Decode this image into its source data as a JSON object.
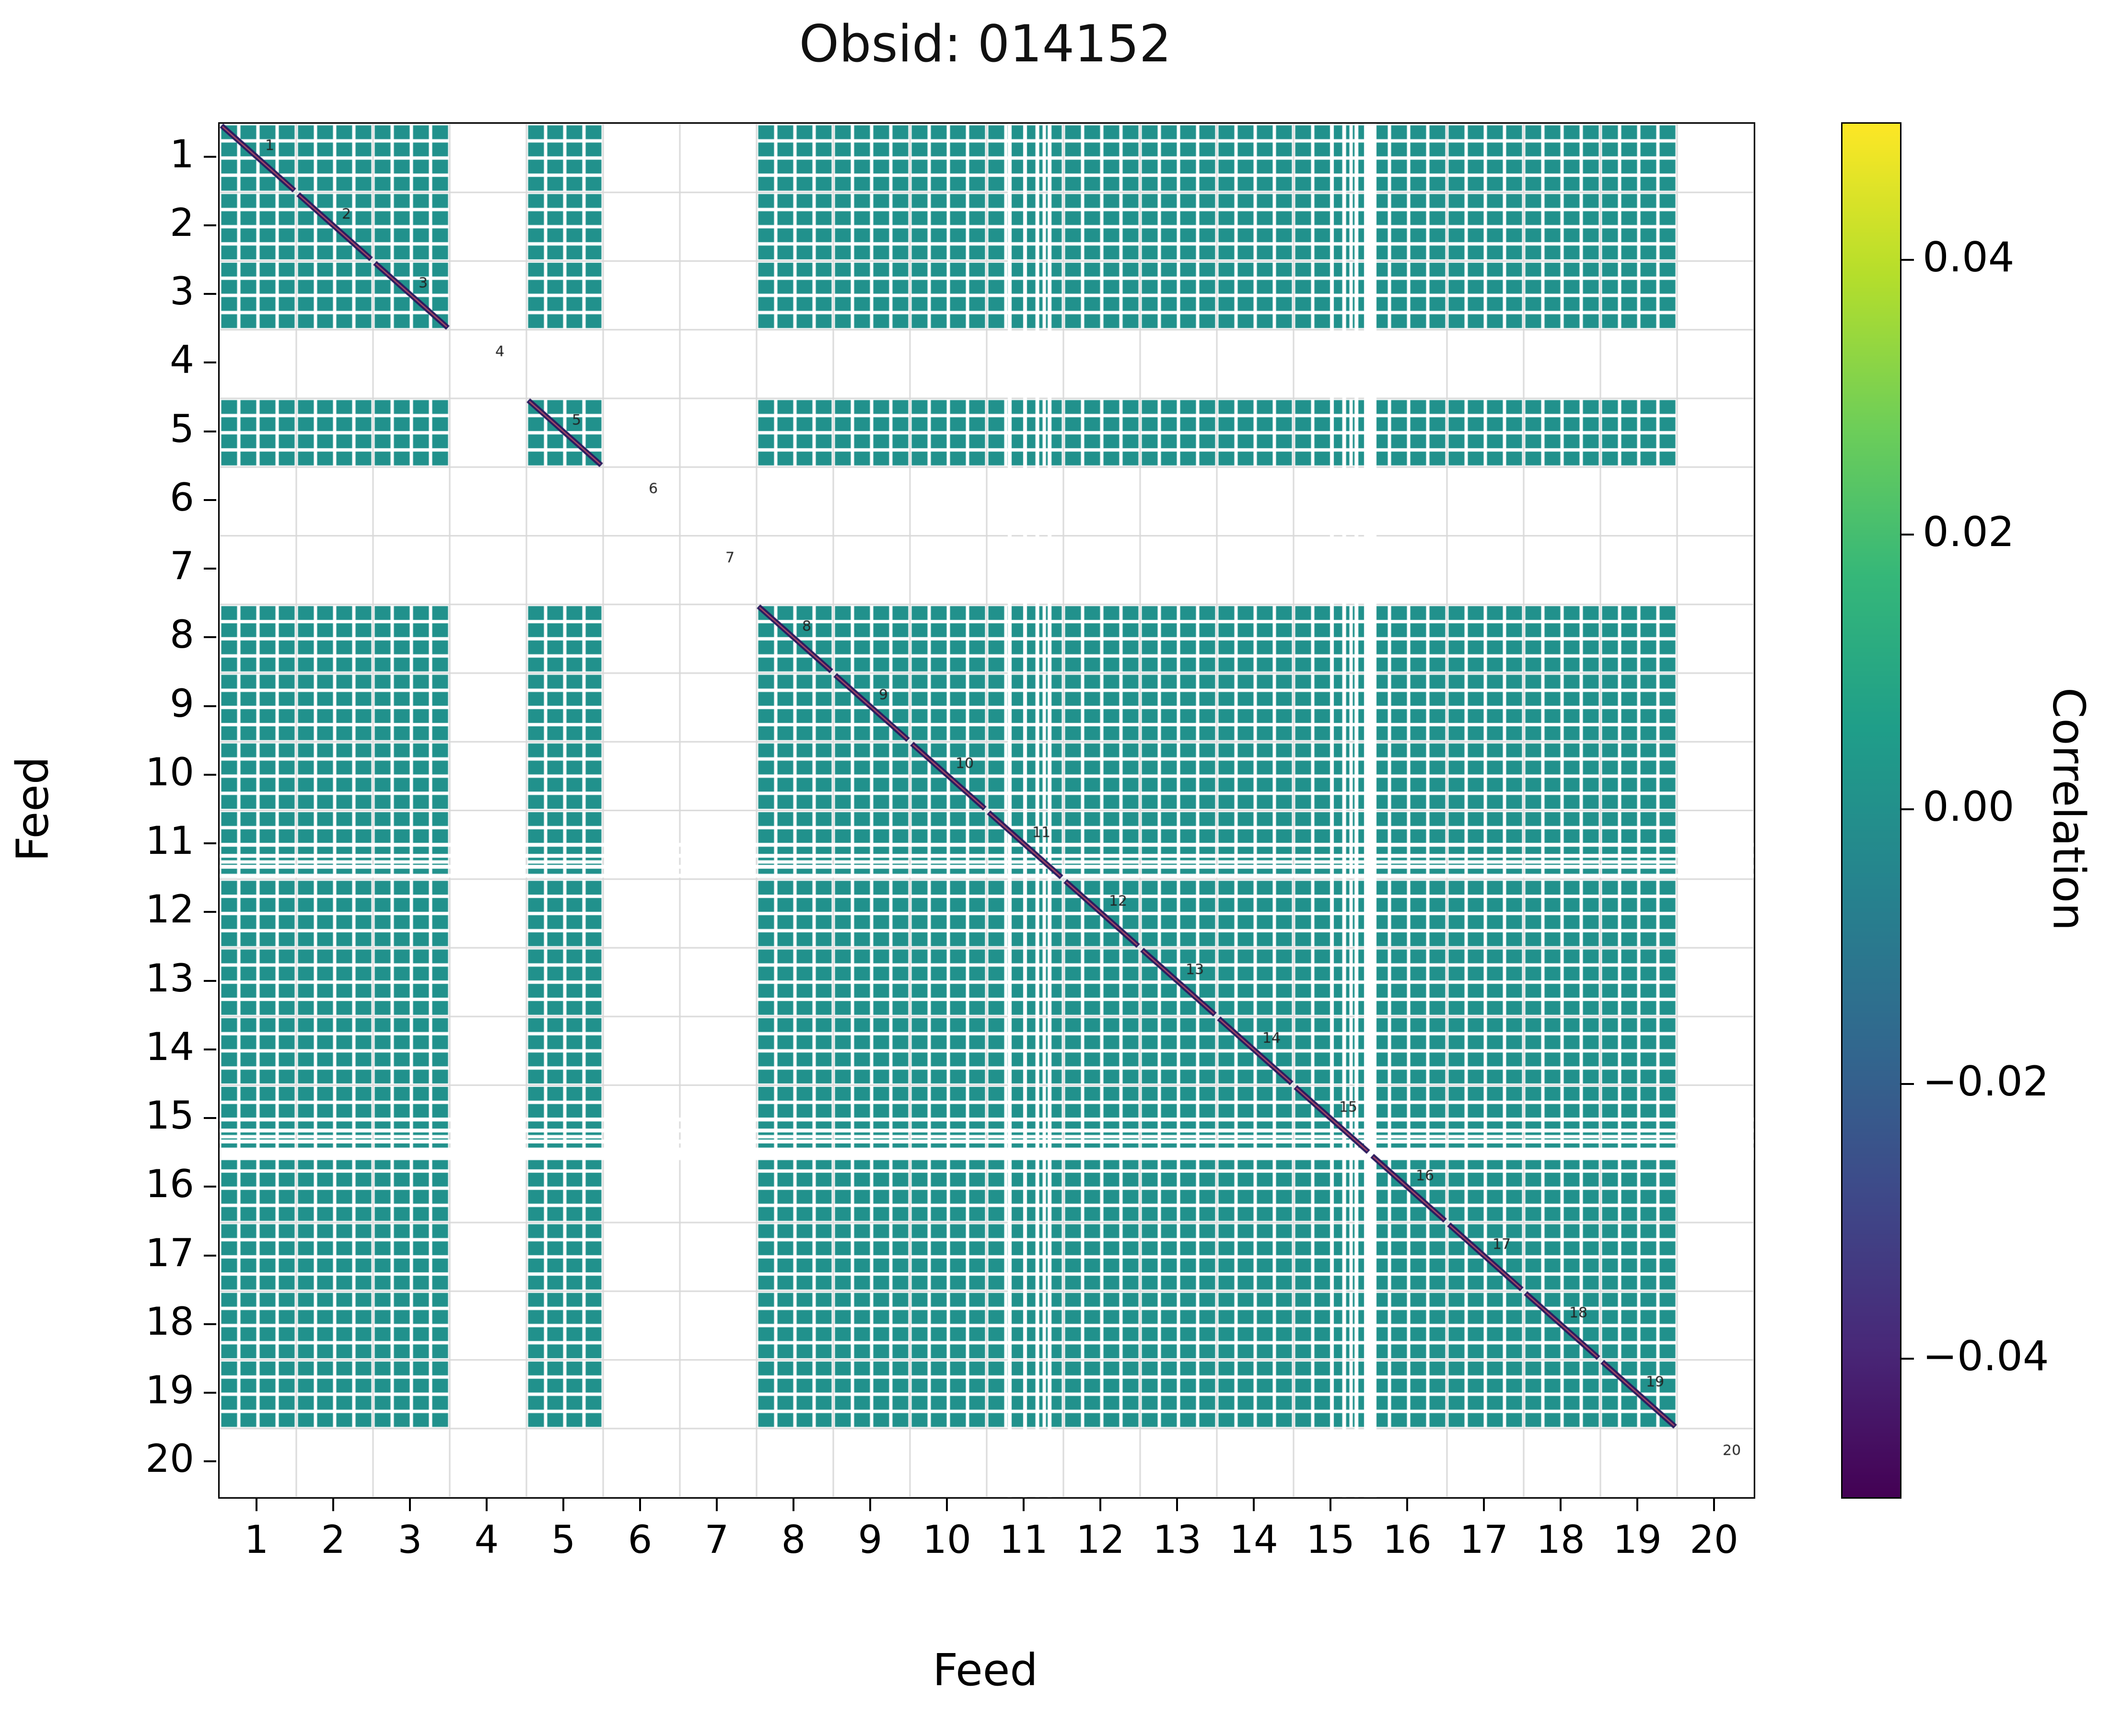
{
  "title": "Obsid: 014152",
  "axis": {
    "xlabel": "Feed",
    "ylabel": "Feed",
    "x_ticks": [
      "1",
      "2",
      "3",
      "4",
      "5",
      "6",
      "7",
      "8",
      "9",
      "10",
      "11",
      "12",
      "13",
      "14",
      "15",
      "16",
      "17",
      "18",
      "19",
      "20"
    ],
    "y_ticks": [
      "1",
      "2",
      "3",
      "4",
      "5",
      "6",
      "7",
      "8",
      "9",
      "10",
      "11",
      "12",
      "13",
      "14",
      "15",
      "16",
      "17",
      "18",
      "19",
      "20"
    ]
  },
  "colorbar": {
    "label": "Correlation",
    "tick_labels": [
      "0.04",
      "0.02",
      "0.00",
      "−0.02",
      "−0.04"
    ],
    "tick_values": [
      0.04,
      0.02,
      0.0,
      -0.02,
      -0.04
    ],
    "vmin": -0.05,
    "vmax": 0.05,
    "colormap": "viridis"
  },
  "chart_data": {
    "type": "heatmap",
    "title": "Obsid: 014152",
    "xlabel": "Feed",
    "ylabel": "Feed",
    "feeds": [
      1,
      2,
      3,
      4,
      5,
      6,
      7,
      8,
      9,
      10,
      11,
      12,
      13,
      14,
      15,
      16,
      17,
      18,
      19,
      20
    ],
    "missing_feeds": [
      4,
      6,
      7,
      20
    ],
    "subbands_per_feed": 4,
    "offdiagonal_value": 0.0,
    "diagonal_note": "diagonal cells saturate at colormap low end (dark)",
    "partial_missing_rows": [
      10.5,
      10.66,
      10.82,
      10.95,
      14.5,
      14.66,
      14.82,
      14.95
    ],
    "partial_missing_cols": [
      10.3,
      10.5,
      10.66,
      10.82,
      14.5,
      14.66,
      14.82
    ],
    "wide_gaps_after_feed": [
      15
    ],
    "diagonal_labels": [
      "1",
      "2",
      "3",
      "4",
      "5",
      "6",
      "7",
      "8",
      "9",
      "10",
      "11",
      "12",
      "13",
      "14",
      "15",
      "16",
      "17",
      "18",
      "19",
      "20"
    ],
    "colormap": "viridis",
    "vmin": -0.05,
    "vmax": 0.05,
    "colors": {
      "cell": "#21918c",
      "diagonal": "#2a1a5e",
      "diagonal_accent": "#a84a68",
      "gridline": "#d9d9d9",
      "background": "#ffffff"
    }
  }
}
